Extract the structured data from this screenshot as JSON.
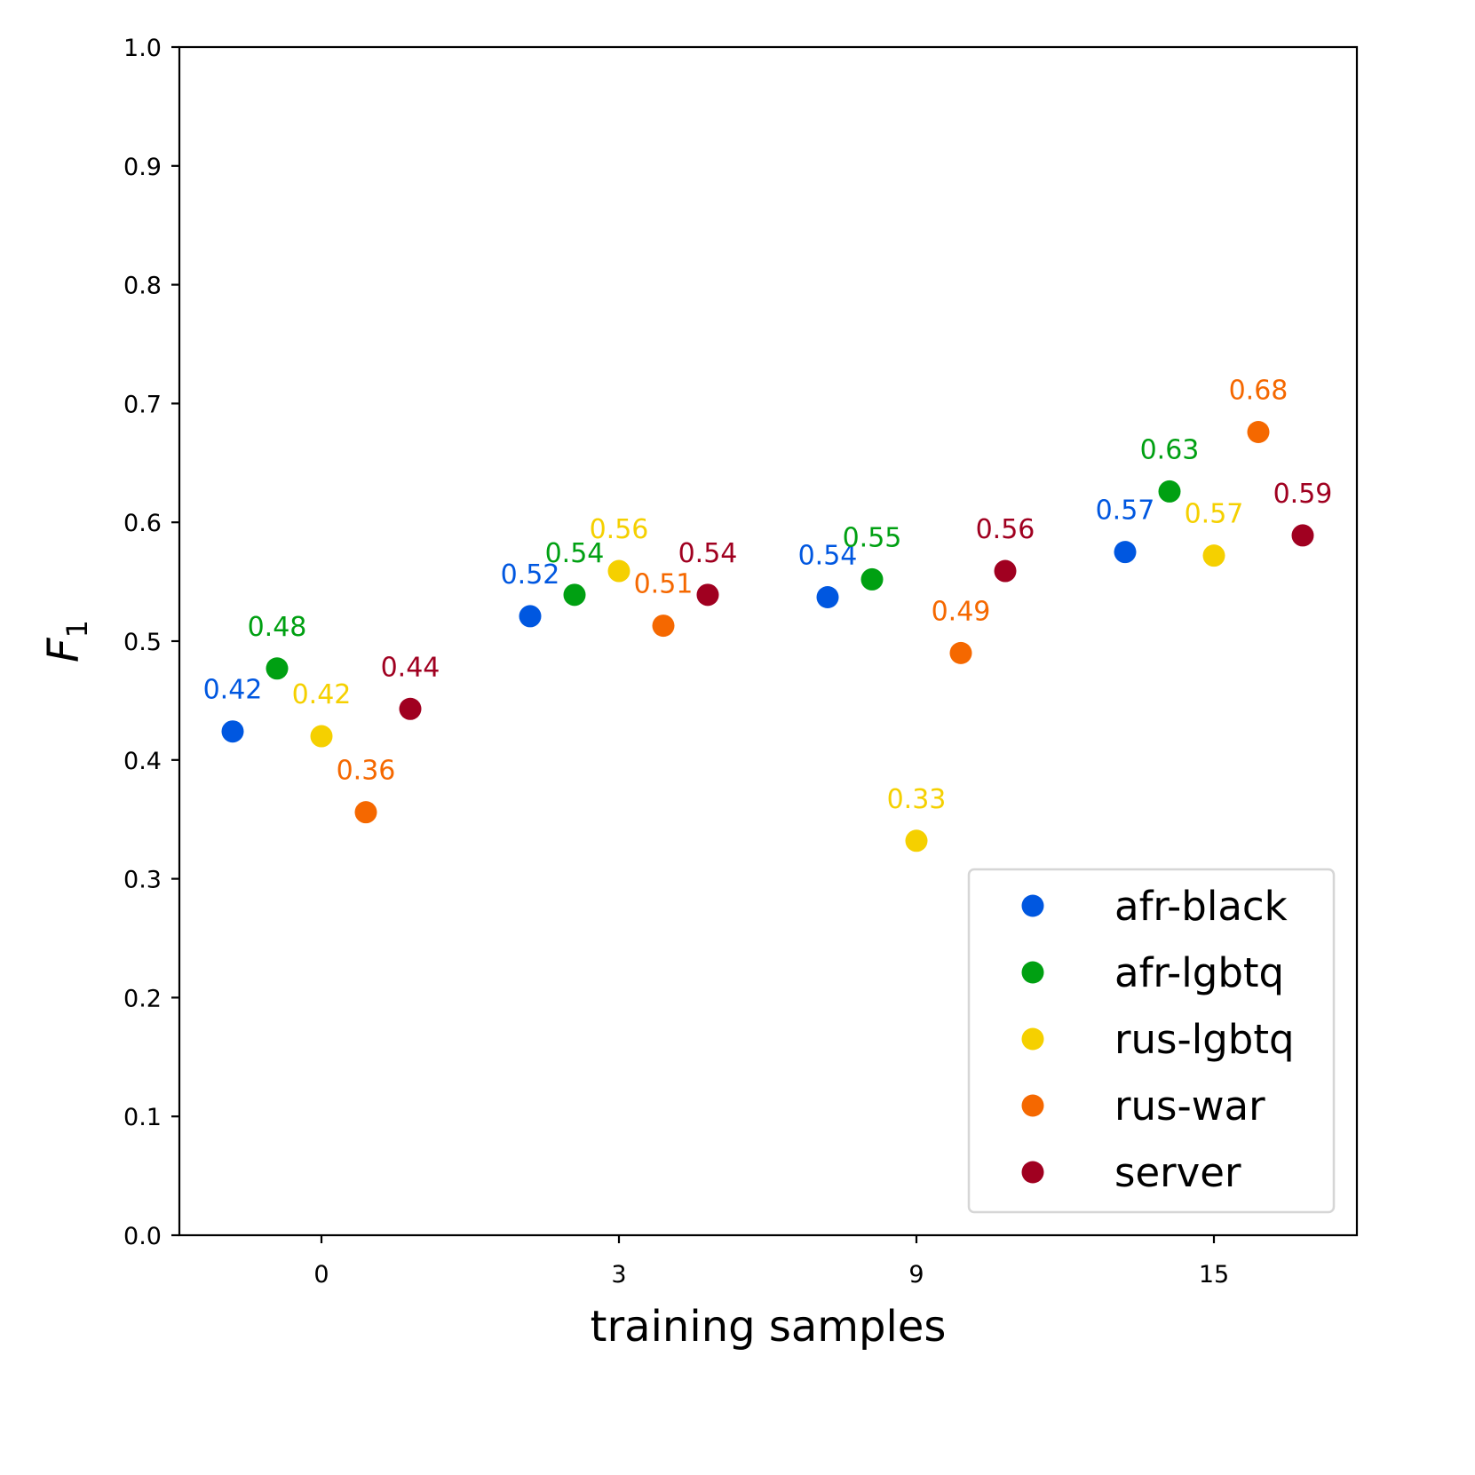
{
  "chart_data": {
    "type": "scatter",
    "title": "",
    "xlabel": "training samples",
    "ylabel": "F",
    "ylabel_subscript": "1",
    "categories": [
      "0",
      "3",
      "9",
      "15"
    ],
    "ylim": [
      0.0,
      1.0
    ],
    "yticks": [
      "0.0",
      "0.1",
      "0.2",
      "0.3",
      "0.4",
      "0.5",
      "0.6",
      "0.7",
      "0.8",
      "0.9",
      "1.0"
    ],
    "grid": false,
    "legend_position": "lower-right",
    "series": [
      {
        "name": "afr-black",
        "color": "#0057e0",
        "values": [
          0.424,
          0.521,
          0.537,
          0.575
        ],
        "labels": [
          "0.42",
          "0.52",
          "0.54",
          "0.57"
        ]
      },
      {
        "name": "afr-lgbtq",
        "color": "#00a012",
        "values": [
          0.477,
          0.539,
          0.552,
          0.626
        ],
        "labels": [
          "0.48",
          "0.54",
          "0.55",
          "0.63"
        ]
      },
      {
        "name": "rus-lgbtq",
        "color": "#f5d000",
        "values": [
          0.42,
          0.559,
          0.332,
          0.572
        ],
        "labels": [
          "0.42",
          "0.56",
          "0.33",
          "0.57"
        ]
      },
      {
        "name": "rus-war",
        "color": "#f56800",
        "values": [
          0.356,
          0.513,
          0.49,
          0.676
        ],
        "labels": [
          "0.36",
          "0.51",
          "0.49",
          "0.68"
        ]
      },
      {
        "name": "server",
        "color": "#a00020",
        "values": [
          0.443,
          0.539,
          0.559,
          0.589
        ],
        "labels": [
          "0.44",
          "0.54",
          "0.56",
          "0.59"
        ]
      }
    ]
  }
}
